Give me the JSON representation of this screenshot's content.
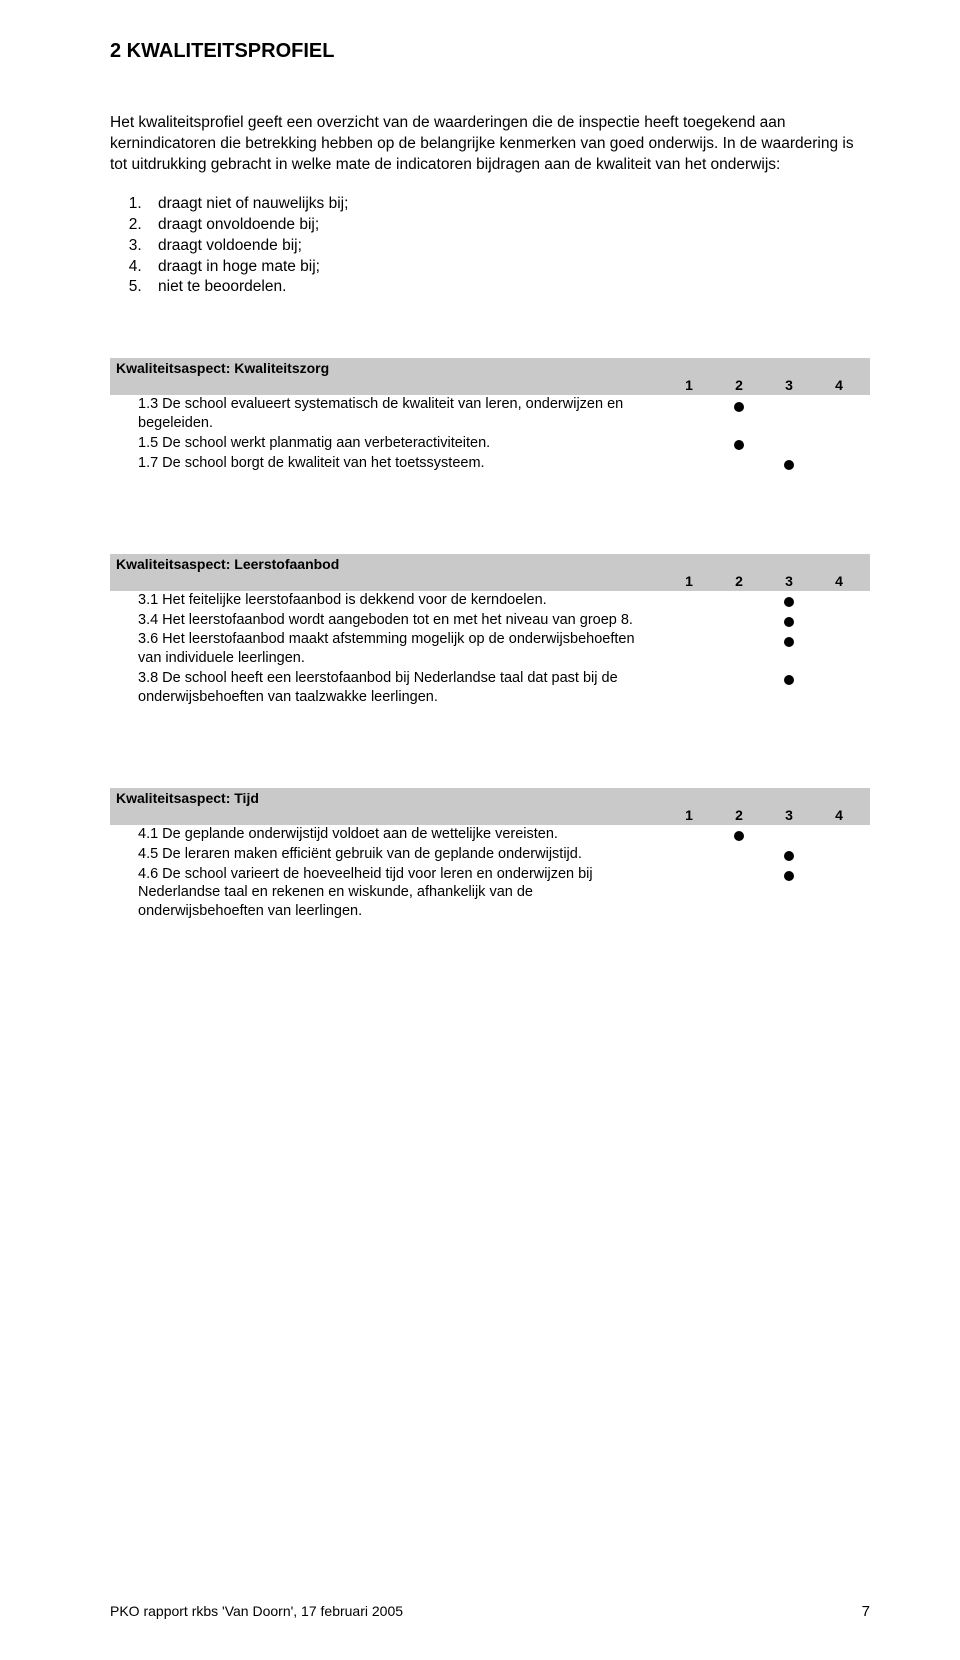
{
  "title": "2  KWALITEITSPROFIEL",
  "intro": "Het kwaliteitsprofiel geeft een overzicht van de waarderingen die de inspectie heeft toegekend aan kernindicatoren die betrekking hebben op de belangrijke kenmerken van goed onderwijs. In de waardering is tot uitdrukking gebracht in welke mate de indicatoren bijdragen aan de kwaliteit van het onderwijs:",
  "legend": {
    "items": [
      "draagt niet of nauwelijks bij;",
      "draagt onvoldoende bij;",
      "draagt voldoende bij;",
      "draagt in hoge mate bij;",
      "niet te beoordelen."
    ]
  },
  "score_headers": [
    "1",
    "2",
    "3",
    "4"
  ],
  "aspect1": {
    "title": "Kwaliteitsaspect: Kwaliteitszorg",
    "items": [
      {
        "text": "1.3 De school evalueert systematisch de kwaliteit van leren, onderwijzen en begeleiden.",
        "score": 2
      },
      {
        "text": "1.5 De school werkt planmatig aan verbeteractiviteiten.",
        "score": 2
      },
      {
        "text": "1.7 De school borgt de kwaliteit van het toetssysteem.",
        "score": 3
      }
    ]
  },
  "aspect2": {
    "title": "Kwaliteitsaspect: Leerstofaanbod",
    "items": [
      {
        "text": "3.1 Het feitelijke leerstofaanbod is dekkend voor de kerndoelen.",
        "score": 3
      },
      {
        "text": "3.4 Het leerstofaanbod wordt aangeboden tot en met het niveau van groep 8.",
        "score": 3
      },
      {
        "text": "3.6 Het leerstofaanbod maakt afstemming mogelijk op de onderwijsbehoeften van individuele leerlingen.",
        "score": 3
      },
      {
        "text": "3.8 De school heeft een leerstofaanbod bij Nederlandse taal dat past bij de onderwijsbehoeften van taalzwakke leerlingen.",
        "score": 3
      }
    ]
  },
  "aspect3": {
    "title": "Kwaliteitsaspect: Tijd",
    "items": [
      {
        "text": "4.1 De geplande onderwijstijd voldoet aan de wettelijke vereisten.",
        "score": 2
      },
      {
        "text": "4.5 De leraren maken efficiënt gebruik van de geplande onderwijstijd.",
        "score": 3
      },
      {
        "text": "4.6 De school varieert de hoeveelheid tijd voor leren en onderwijzen bij Nederlandse taal en rekenen en wiskunde, afhankelijk van de onderwijsbehoeften van leerlingen.",
        "score": 3
      }
    ]
  },
  "footer_text": "PKO rapport rkbs  'Van Doorn', 17 februari 2005",
  "page_number": "7",
  "colors": {
    "header_bg": "#c9c9c9",
    "text": "#000000",
    "background": "#ffffff"
  }
}
